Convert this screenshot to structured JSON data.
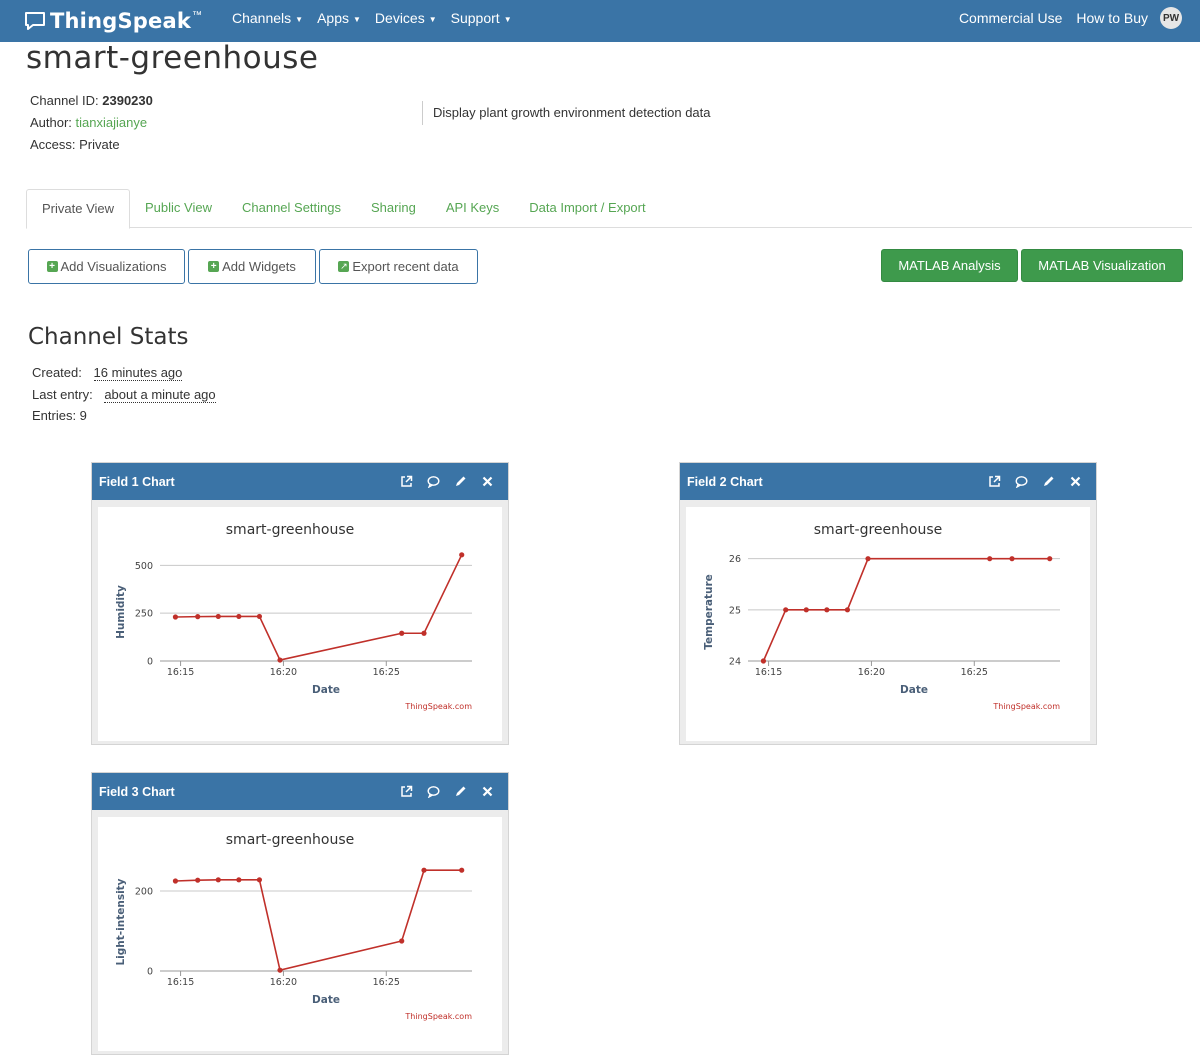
{
  "nav": {
    "brand": "ThingSpeak",
    "brand_tm": "™",
    "menu": [
      "Channels",
      "Apps",
      "Devices",
      "Support"
    ],
    "right": [
      "Commercial Use",
      "How to Buy"
    ],
    "avatar": "PW"
  },
  "channel": {
    "title": "smart-greenhouse",
    "id_label": "Channel ID: ",
    "id": "2390230",
    "author_label": "Author: ",
    "author": "tianxiajianye",
    "access": "Access: Private",
    "description": "Display plant growth environment detection data"
  },
  "tabs": [
    "Private View",
    "Public View",
    "Channel Settings",
    "Sharing",
    "API Keys",
    "Data Import / Export"
  ],
  "buttons": {
    "add_viz": "Add Visualizations",
    "add_widgets": "Add Widgets",
    "export": "Export recent data",
    "matlab_analysis": "MATLAB Analysis",
    "matlab_viz": "MATLAB Visualization"
  },
  "stats": {
    "heading": "Channel Stats",
    "created_label": "Created:",
    "created": "16 minutes ago",
    "last_label": "Last entry:",
    "last": "about a minute ago",
    "entries": "Entries: 9"
  },
  "colors": {
    "nav": "#3a74a6",
    "accent_green": "#56a653",
    "series": "#c0302a"
  },
  "panels": [
    {
      "title": "Field 1 Chart"
    },
    {
      "title": "Field 2 Chart"
    },
    {
      "title": "Field 3 Chart"
    }
  ],
  "panel_icons": [
    "external-link-icon",
    "comment-icon",
    "pencil-icon",
    "close-icon"
  ],
  "chart_data": [
    {
      "type": "line",
      "title": "smart-greenhouse",
      "xlabel": "Date",
      "ylabel": "Humidity",
      "credit": "ThingSpeak.com",
      "xticks": [
        "16:15",
        "16:20",
        "16:25"
      ],
      "yticks": [
        0,
        250,
        500
      ],
      "ylim": [
        0,
        575
      ],
      "x": [
        "16:14:45",
        "16:15:50",
        "16:16:50",
        "16:17:50",
        "16:18:50",
        "16:19:50",
        "16:25:45",
        "16:26:50",
        "16:28:40"
      ],
      "series": [
        {
          "values": [
            230,
            232,
            233,
            233,
            233,
            5,
            145,
            145,
            555
          ]
        }
      ]
    },
    {
      "type": "line",
      "title": "smart-greenhouse",
      "xlabel": "Date",
      "ylabel": "Temperature",
      "credit": "ThingSpeak.com",
      "xticks": [
        "16:15",
        "16:20",
        "16:25"
      ],
      "yticks": [
        24,
        25,
        26
      ],
      "ylim": [
        24,
        26.15
      ],
      "x": [
        "16:14:45",
        "16:15:50",
        "16:16:50",
        "16:17:50",
        "16:18:50",
        "16:19:50",
        "16:25:45",
        "16:26:50",
        "16:28:40"
      ],
      "series": [
        {
          "values": [
            24,
            25,
            25,
            25,
            25,
            26,
            26,
            26,
            26
          ]
        }
      ]
    },
    {
      "type": "line",
      "title": "smart-greenhouse",
      "xlabel": "Date",
      "ylabel": "Light-intensity",
      "credit": "ThingSpeak.com",
      "xticks": [
        "16:15",
        "16:20",
        "16:25"
      ],
      "yticks": [
        0,
        200
      ],
      "ylim": [
        0,
        275
      ],
      "x": [
        "16:14:45",
        "16:15:50",
        "16:16:50",
        "16:17:50",
        "16:18:50",
        "16:19:50",
        "16:25:45",
        "16:26:50",
        "16:28:40"
      ],
      "series": [
        {
          "values": [
            225,
            227,
            228,
            228,
            228,
            2,
            75,
            252,
            252
          ]
        }
      ]
    }
  ]
}
